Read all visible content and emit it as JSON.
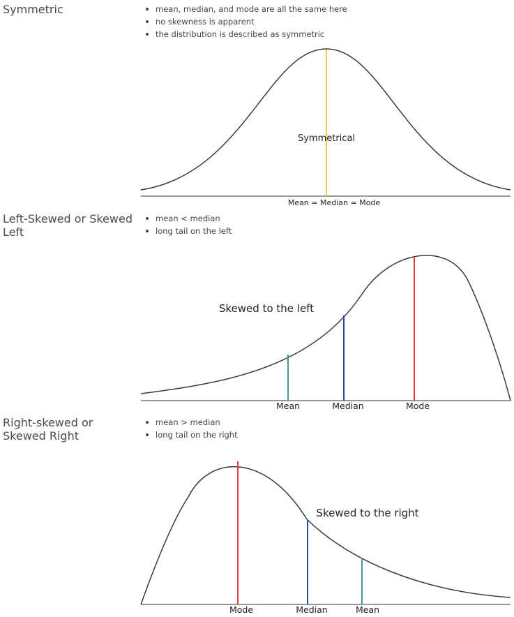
{
  "sections": [
    {
      "title": "Symmetric",
      "bullets": [
        "mean, median, and mode are all the same here",
        "no skewness is apparent",
        "the distribution is described as symmetric"
      ],
      "curve_label": "Symmetrical",
      "axis_label": "Mean = Median = Mode",
      "colors": {
        "center_line": "#f5c842"
      }
    },
    {
      "title": "Left-Skewed or Skewed Left",
      "bullets": [
        "mean < median",
        "long tail on the left"
      ],
      "curve_label": "Skewed to the left",
      "markers": [
        {
          "label": "Mean",
          "color": "#3a9ba6"
        },
        {
          "label": "Median",
          "color": "#1f4e9c"
        },
        {
          "label": "Mode",
          "color": "#e03a3a"
        }
      ]
    },
    {
      "title": "Right-skewed or Skewed Right",
      "bullets": [
        "mean > median",
        "long tail on the right"
      ],
      "curve_label": "Skewed to the right",
      "markers": [
        {
          "label": "Mode",
          "color": "#e03a3a"
        },
        {
          "label": "Median",
          "color": "#1f4e9c"
        },
        {
          "label": "Mean",
          "color": "#3a9ba6"
        }
      ]
    }
  ],
  "colors": {
    "curve": "#3a3a3a",
    "axis": "#333333"
  }
}
